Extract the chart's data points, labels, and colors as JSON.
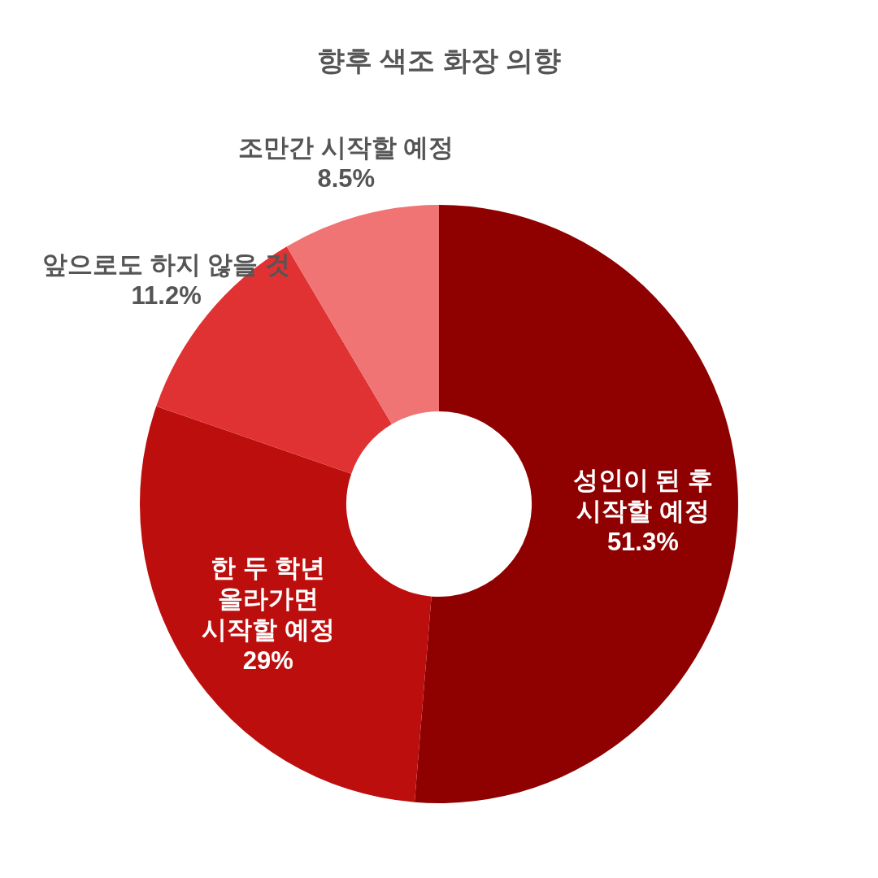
{
  "chart_data": {
    "type": "donut",
    "title": "향후 색조 화장 의향",
    "categories": [
      "성인이 된 후\n시작할 예정",
      "한 두 학년\n올라가면\n시작할 예정",
      "앞으로도 하지 않을 것",
      "조만간 시작할 예정"
    ],
    "values": [
      51.3,
      29,
      11.2,
      8.5
    ],
    "colors": [
      "#8f0000",
      "#bd0e0e",
      "#e03232",
      "#f07474"
    ],
    "value_labels": [
      "51.3%",
      "29%",
      "11.2%",
      "8.5%"
    ],
    "legend": false
  }
}
